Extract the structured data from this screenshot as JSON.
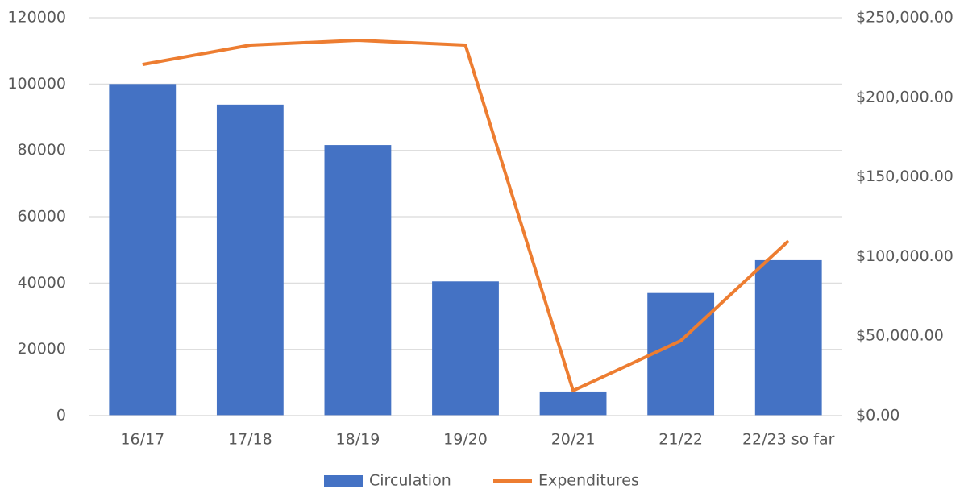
{
  "chart_data": {
    "type": "bar",
    "categories": [
      "16/17",
      "17/18",
      "18/19",
      "19/20",
      "20/21",
      "21/22",
      "22/23 so far"
    ],
    "series": [
      {
        "name": "Circulation",
        "type": "bar",
        "color": "#4472c4",
        "values": [
          100000,
          93800,
          81600,
          40500,
          7300,
          37000,
          46900
        ]
      },
      {
        "name": "Expenditures",
        "type": "line",
        "axis": "y2",
        "color": "#ed7d31",
        "values": [
          220600,
          232800,
          235800,
          232800,
          15700,
          47100,
          109800
        ]
      }
    ],
    "ylim": [
      0,
      120000
    ],
    "yticks": [
      0,
      20000,
      40000,
      60000,
      80000,
      100000,
      120000
    ],
    "y2lim": [
      0,
      250000
    ],
    "y2ticks": [
      {
        "value": 0,
        "label": "$0.00"
      },
      {
        "value": 50000,
        "label": "$50,000.00"
      },
      {
        "value": 100000,
        "label": "$100,000.00"
      },
      {
        "value": 150000,
        "label": "$150,000.00"
      },
      {
        "value": 200000,
        "label": "$200,000.00"
      },
      {
        "value": 250000,
        "label": "$250,000.00"
      }
    ],
    "grid": true,
    "legend": "bottom"
  }
}
